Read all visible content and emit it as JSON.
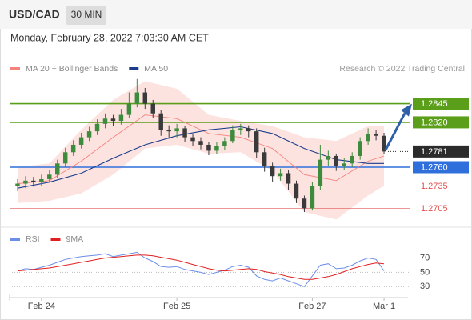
{
  "header": {
    "symbol": "USD/CAD",
    "timeframe": "30 MIN",
    "datetime": "Monday, February 28, 2022 7:03:30 AM CET",
    "watermark": "Research © 2022 Trading Central"
  },
  "chart_data": [
    {
      "type": "candlestick",
      "x": [
        1,
        2,
        3,
        4,
        5,
        6,
        7,
        8,
        9,
        10,
        11,
        12,
        13,
        14,
        15,
        16,
        17,
        18,
        19,
        20,
        21,
        22,
        23,
        24,
        25,
        26,
        27,
        28,
        29,
        30,
        31,
        32,
        33,
        34,
        35,
        36,
        37,
        38,
        39,
        40,
        41,
        42,
        43,
        44,
        45,
        46,
        47
      ],
      "open": [
        1.2735,
        1.2738,
        1.2742,
        1.274,
        1.2744,
        1.275,
        1.2765,
        1.278,
        1.279,
        1.28,
        1.2808,
        1.2818,
        1.2825,
        1.2822,
        1.283,
        1.2845,
        1.286,
        1.2845,
        1.2832,
        1.281,
        1.2808,
        1.2812,
        1.28,
        1.2795,
        1.279,
        1.2782,
        1.2788,
        1.2795,
        1.281,
        1.2812,
        1.2808,
        1.278,
        1.2762,
        1.2748,
        1.2752,
        1.2738,
        1.2718,
        1.2705,
        1.2735,
        1.277,
        1.2775,
        1.2762,
        1.2765,
        1.2775,
        1.2795,
        1.2805,
        1.2802
      ],
      "high": [
        1.2744,
        1.2748,
        1.2747,
        1.275,
        1.2756,
        1.277,
        1.2786,
        1.2796,
        1.2806,
        1.2814,
        1.2824,
        1.2832,
        1.283,
        1.2838,
        1.286,
        1.2878,
        1.2866,
        1.285,
        1.2836,
        1.2816,
        1.2818,
        1.2815,
        1.2805,
        1.28,
        1.2794,
        1.2794,
        1.28,
        1.2816,
        1.2818,
        1.2816,
        1.2812,
        1.2786,
        1.2766,
        1.2758,
        1.2756,
        1.2742,
        1.2722,
        1.274,
        1.279,
        1.2782,
        1.2778,
        1.2772,
        1.278,
        1.28,
        1.2812,
        1.281,
        1.2806
      ],
      "low": [
        1.2728,
        1.2732,
        1.2734,
        1.2735,
        1.274,
        1.2746,
        1.276,
        1.2775,
        1.2785,
        1.2795,
        1.2803,
        1.2812,
        1.2815,
        1.2817,
        1.2826,
        1.284,
        1.2838,
        1.2826,
        1.2802,
        1.2798,
        1.28,
        1.2794,
        1.2788,
        1.2784,
        1.2776,
        1.2778,
        1.2783,
        1.2792,
        1.2803,
        1.28,
        1.2772,
        1.2754,
        1.274,
        1.2742,
        1.273,
        1.2712,
        1.27,
        1.2702,
        1.273,
        1.2762,
        1.2755,
        1.2756,
        1.276,
        1.277,
        1.279,
        1.2796,
        1.2778
      ],
      "close": [
        1.2738,
        1.2742,
        1.274,
        1.2744,
        1.275,
        1.2765,
        1.278,
        1.279,
        1.28,
        1.2808,
        1.2818,
        1.2825,
        1.2822,
        1.283,
        1.2845,
        1.286,
        1.2845,
        1.2832,
        1.281,
        1.2808,
        1.2812,
        1.28,
        1.2795,
        1.279,
        1.2782,
        1.2788,
        1.2795,
        1.281,
        1.2812,
        1.2808,
        1.278,
        1.2762,
        1.2748,
        1.2752,
        1.2738,
        1.2718,
        1.2705,
        1.2735,
        1.277,
        1.2775,
        1.2762,
        1.2765,
        1.2775,
        1.2795,
        1.2805,
        1.2802,
        1.2781
      ],
      "up_color": "#3d8b3d",
      "down_color": "#3a3a3a",
      "series": [
        {
          "name": "MA 20 + Bollinger Bands",
          "color": "#f4837d",
          "band_color": "#fde3e0",
          "x": [
            1,
            5,
            9,
            13,
            17,
            21,
            25,
            29,
            33,
            37,
            41,
            45,
            47
          ],
          "values": [
            1.2738,
            1.2742,
            1.2768,
            1.28,
            1.283,
            1.2825,
            1.2805,
            1.28,
            1.2785,
            1.275,
            1.2742,
            1.2768,
            1.2775
          ],
          "upper": [
            1.276,
            1.2765,
            1.281,
            1.285,
            1.2875,
            1.2865,
            1.283,
            1.2822,
            1.2815,
            1.28,
            1.2795,
            1.2815,
            1.2815
          ],
          "lower": [
            1.2712,
            1.2715,
            1.2725,
            1.275,
            1.2785,
            1.279,
            1.2778,
            1.278,
            1.2755,
            1.27,
            1.269,
            1.2722,
            1.2735
          ]
        },
        {
          "name": "MA 50",
          "color": "#1c3d8c",
          "x": [
            1,
            5,
            9,
            13,
            17,
            21,
            25,
            29,
            33,
            37,
            41,
            45,
            47
          ],
          "values": [
            1.2732,
            1.274,
            1.2752,
            1.2772,
            1.279,
            1.2802,
            1.281,
            1.2814,
            1.2805,
            1.2785,
            1.277,
            1.2765,
            1.2765
          ]
        }
      ],
      "levels": [
        {
          "value": 1.2845,
          "color": "#5a9e1a",
          "label_box": true,
          "line": "solid"
        },
        {
          "value": 1.282,
          "label": "1.2820",
          "color": "#5a9e1a",
          "label_box": true,
          "line": "solid"
        },
        {
          "value": 1.2781,
          "color": "#2b2b2b",
          "label_box": true,
          "line": "dotted"
        },
        {
          "value": 1.276,
          "label": "1.2760",
          "color": "#2f6fdc",
          "label_box": true,
          "line": "solid"
        },
        {
          "value": 1.2735,
          "color": "#e0524f",
          "label_box": false,
          "line": "thin"
        },
        {
          "value": 1.2705,
          "color": "#e0524f",
          "label_box": false,
          "line": "thin"
        }
      ],
      "xlim": [
        0,
        48
      ],
      "ylim": [
        1.2684,
        1.2882
      ],
      "xticks": [
        {
          "value": 4,
          "label": "Feb 24"
        },
        {
          "value": 21,
          "label": "Feb 25"
        },
        {
          "value": 38,
          "label": "Feb 27"
        },
        {
          "value": 47,
          "label": "Mar 1"
        }
      ]
    },
    {
      "type": "line",
      "x": [
        1,
        2,
        3,
        4,
        5,
        6,
        7,
        8,
        9,
        10,
        11,
        12,
        13,
        14,
        15,
        16,
        17,
        18,
        19,
        20,
        21,
        22,
        23,
        24,
        25,
        26,
        27,
        28,
        29,
        30,
        31,
        32,
        33,
        34,
        35,
        36,
        37,
        38,
        39,
        40,
        41,
        42,
        43,
        44,
        45,
        46,
        47
      ],
      "series": [
        {
          "name": "RSI",
          "color": "#6b8ee8",
          "values": [
            52,
            55,
            54,
            57,
            60,
            64,
            68,
            70,
            72,
            73,
            74,
            76,
            72,
            74,
            76,
            78,
            70,
            65,
            58,
            57,
            58,
            54,
            52,
            50,
            47,
            50,
            53,
            58,
            60,
            57,
            45,
            40,
            38,
            42,
            38,
            34,
            30,
            45,
            60,
            62,
            55,
            56,
            60,
            66,
            70,
            68,
            52
          ]
        },
        {
          "name": "9MA",
          "color": "#e02020",
          "values": [
            52,
            53,
            54,
            55,
            56,
            58,
            60,
            62,
            64,
            66,
            68,
            70,
            71,
            72,
            73,
            74,
            74,
            73,
            71,
            69,
            67,
            64,
            61,
            58,
            55,
            53,
            52,
            53,
            54,
            55,
            54,
            51,
            49,
            47,
            44,
            42,
            40,
            40,
            42,
            44,
            47,
            51,
            55,
            58,
            61,
            63,
            62
          ]
        }
      ],
      "xlim": [
        0,
        48
      ],
      "ylim": [
        18,
        84
      ],
      "yticks": [
        70,
        50,
        30
      ],
      "grid": true
    }
  ]
}
